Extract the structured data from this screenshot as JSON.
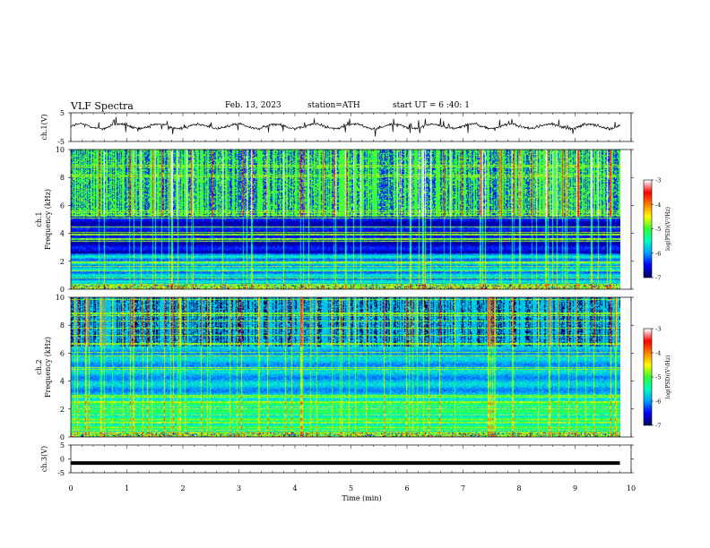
{
  "header": {
    "title": "VLF  Spectra",
    "date": "Feb. 13, 2023",
    "station": "station=ATH",
    "start": "start  UT  =   6  :40: 1"
  },
  "chart_data": [
    {
      "type": "line",
      "panel": "ch1-waveform",
      "ylabel": "ch.1(V)",
      "ylim": [
        -5,
        5
      ],
      "yticks": [
        "5",
        "-5"
      ],
      "xlim": [
        0,
        10
      ],
      "baseline_mean": 0.3,
      "xlabel": ""
    },
    {
      "type": "heatmap",
      "panel": "ch1-spectrogram",
      "ylabel": "ch.1\nFrequency  (kHz)",
      "ylim": [
        0,
        10
      ],
      "yticks": [
        "0",
        "2",
        "4",
        "6",
        "8",
        "10"
      ],
      "xlim": [
        0,
        10
      ],
      "data_end_min": 9.8,
      "colorbar": {
        "label": "log(PSD)(V²/Hz)",
        "ticks": [
          "-3",
          "-4",
          "-5",
          "-6",
          "-7"
        ],
        "range": [
          -7,
          -3
        ]
      }
    },
    {
      "type": "heatmap",
      "panel": "ch2-spectrogram",
      "ylabel": "ch.2\nFrequency  (kHz)",
      "ylim": [
        0,
        10
      ],
      "yticks": [
        "0",
        "2",
        "4",
        "6",
        "8",
        "10"
      ],
      "xlim": [
        0,
        10
      ],
      "data_end_min": 9.8,
      "colorbar": {
        "label": "log(PSD)(V²/Hz)",
        "ticks": [
          "-3",
          "-4",
          "-5",
          "-6",
          "-7"
        ],
        "range": [
          -7,
          -3
        ]
      }
    },
    {
      "type": "line",
      "panel": "ch3-waveform",
      "ylabel": "ch.3(V)",
      "ylim": [
        -5,
        5
      ],
      "yticks": [
        "5",
        "0",
        "-5"
      ],
      "xlim": [
        0,
        10
      ],
      "constant_value": -1.5,
      "xlabel": "Time  (min)",
      "xticks": [
        "0",
        "1",
        "2",
        "3",
        "4",
        "5",
        "6",
        "7",
        "8",
        "9",
        "10"
      ]
    }
  ],
  "colors": {
    "colormap": [
      "#000060",
      "#0000ff",
      "#00a0ff",
      "#00ffc0",
      "#30ff30",
      "#ffff00",
      "#ff8000",
      "#ff0000",
      "#ffffff"
    ]
  }
}
